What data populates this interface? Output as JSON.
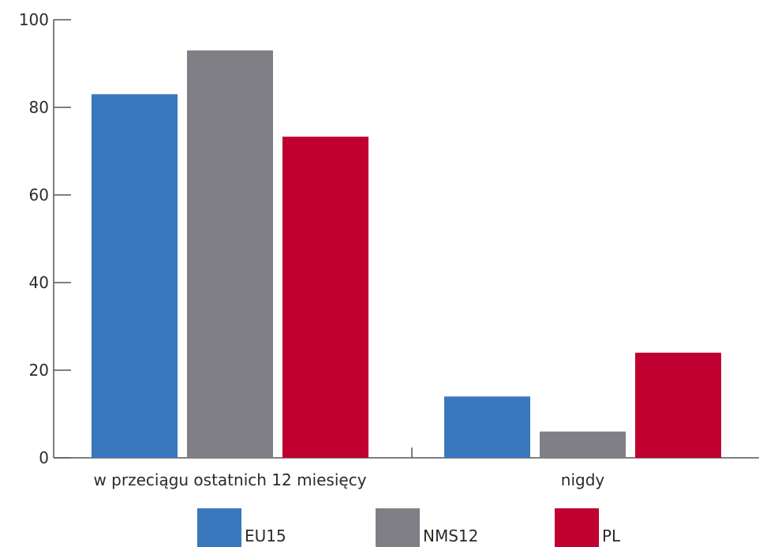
{
  "chart_data": {
    "type": "bar",
    "categories": [
      "w przeciągu ostatnich 12 miesięcy",
      "nigdy"
    ],
    "series": [
      {
        "name": "EU15",
        "values": [
          83,
          14
        ],
        "color": "#3b77bc"
      },
      {
        "name": "NMS12",
        "values": [
          93,
          6
        ],
        "color": "#7f7f85"
      },
      {
        "name": "PL",
        "values": [
          73.3,
          24
        ],
        "color": "#c00030"
      }
    ],
    "ylim": [
      0,
      100
    ],
    "yticks": [
      "0",
      "20",
      "40",
      "60",
      "80",
      "100"
    ],
    "legend_position": "bottom",
    "grid": false,
    "axis_color": "#555555"
  }
}
